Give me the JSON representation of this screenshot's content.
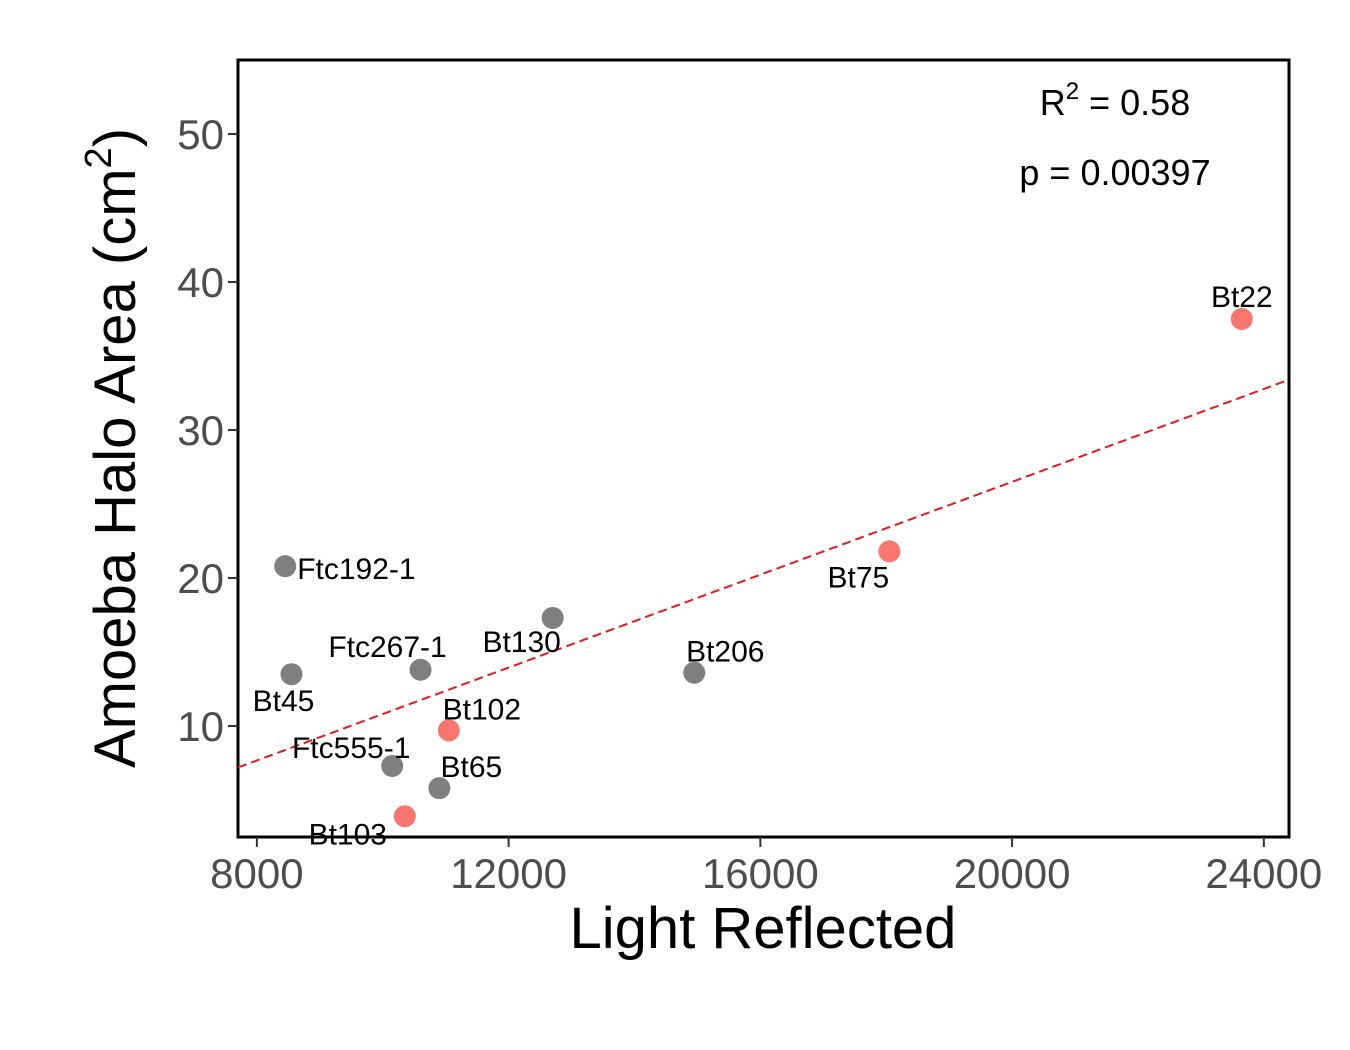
{
  "chart_data": {
    "type": "scatter",
    "xlabel": "Light Reflected",
    "ylabel": "Amoeba Halo Area (cm",
    "ylabel_superscript": "2",
    "ylabel_close": ")",
    "xlim": [
      7700,
      24400
    ],
    "ylim": [
      2.5,
      55
    ],
    "x_ticks": [
      8000,
      12000,
      16000,
      20000,
      24000
    ],
    "y_ticks": [
      10,
      20,
      30,
      40,
      50
    ],
    "grid": false,
    "annotations": {
      "r2_prefix": "R",
      "r2_superscript": "2",
      "r2_value": " = 0.58",
      "p_value": "p = 0.00397"
    },
    "colors": {
      "gray_points": "#7f7f7f",
      "red_points": "#f8766d",
      "trend_line": "#e41a1c"
    },
    "points": [
      {
        "label": "Bt22",
        "x": 23650,
        "y": 37.5,
        "group": "red"
      },
      {
        "label": "Bt75",
        "x": 18050,
        "y": 21.8,
        "group": "red"
      },
      {
        "label": "Bt206",
        "x": 14950,
        "y": 13.6,
        "group": "gray"
      },
      {
        "label": "Bt130",
        "x": 12700,
        "y": 17.3,
        "group": "gray"
      },
      {
        "label": "Ftc192-1",
        "x": 8450,
        "y": 20.8,
        "group": "gray"
      },
      {
        "label": "Ftc267-1",
        "x": 10600,
        "y": 13.8,
        "group": "gray"
      },
      {
        "label": "Bt45",
        "x": 8550,
        "y": 13.5,
        "group": "gray"
      },
      {
        "label": "Bt102",
        "x": 11050,
        "y": 9.7,
        "group": "red"
      },
      {
        "label": "Ftc555-1",
        "x": 10150,
        "y": 7.3,
        "group": "gray"
      },
      {
        "label": "Bt65",
        "x": 10900,
        "y": 5.8,
        "group": "gray"
      },
      {
        "label": "Bt103",
        "x": 10350,
        "y": 3.9,
        "group": "red"
      }
    ],
    "trend_line": {
      "x": [
        7700,
        24400
      ],
      "y": [
        7.2,
        33.4
      ]
    }
  }
}
